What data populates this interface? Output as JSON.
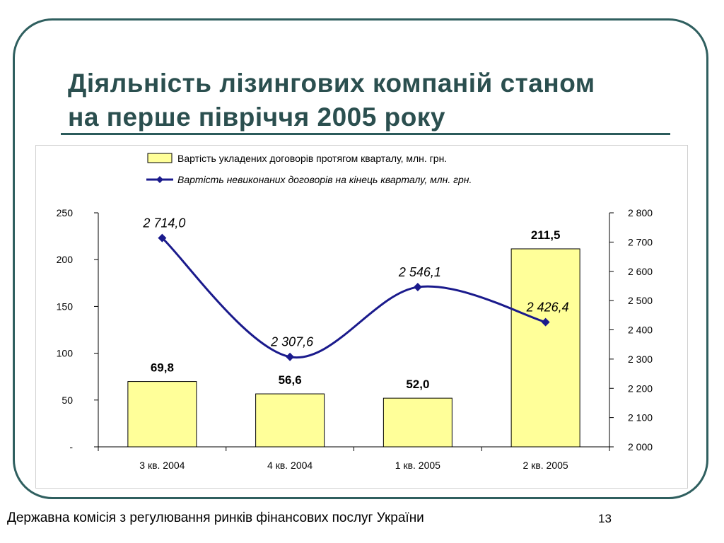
{
  "slide": {
    "title_line1": "Діяльність лізингових компаній станом",
    "title_line2": "на перше півріччя 2005 року",
    "footer": "Державна комісія з регулювання ринків фінансових послуг України",
    "page_number": "13"
  },
  "colors": {
    "bar_fill": "#ffff99",
    "line": "#1a1a8c",
    "frame": "#2f5f5f",
    "title": "#2b4f4f"
  },
  "chart_data": {
    "type": "bar",
    "title": "",
    "xlabel": "",
    "ylabel": "",
    "categories": [
      "3 кв. 2004",
      "4 кв. 2004",
      "1 кв. 2005",
      "2 кв. 2005"
    ],
    "series": [
      {
        "name": "Вартість укладених договорів протягом кварталу, млн. грн.",
        "type": "bar",
        "axis": "left",
        "values": [
          69.8,
          56.6,
          52.0,
          211.5
        ],
        "labels": [
          "69,8",
          "56,6",
          "52,0",
          "211,5"
        ]
      },
      {
        "name": "Вартість невиконаних договорів на кінець кварталу, млн. грн.",
        "type": "line",
        "axis": "right",
        "marker": "diamond",
        "values": [
          2714.0,
          2307.6,
          2546.1,
          2426.4
        ],
        "labels": [
          "2 714,0",
          "2 307,6",
          "2 546,1",
          "2 426,4"
        ]
      }
    ],
    "y_left": {
      "range": [
        0,
        250
      ],
      "ticks": [
        0,
        50,
        100,
        150,
        200,
        250
      ],
      "tick_labels": [
        "-",
        "50",
        "100",
        "150",
        "200",
        "250"
      ]
    },
    "y_right": {
      "range": [
        2000,
        2800
      ],
      "ticks": [
        2000,
        2100,
        2200,
        2300,
        2400,
        2500,
        2600,
        2700,
        2800
      ],
      "tick_labels": [
        "2 000",
        "2 100",
        "2 200",
        "2 300",
        "2 400",
        "2 500",
        "2 600",
        "2 700",
        "2 800"
      ]
    },
    "grid": false,
    "legend_position": "top"
  }
}
